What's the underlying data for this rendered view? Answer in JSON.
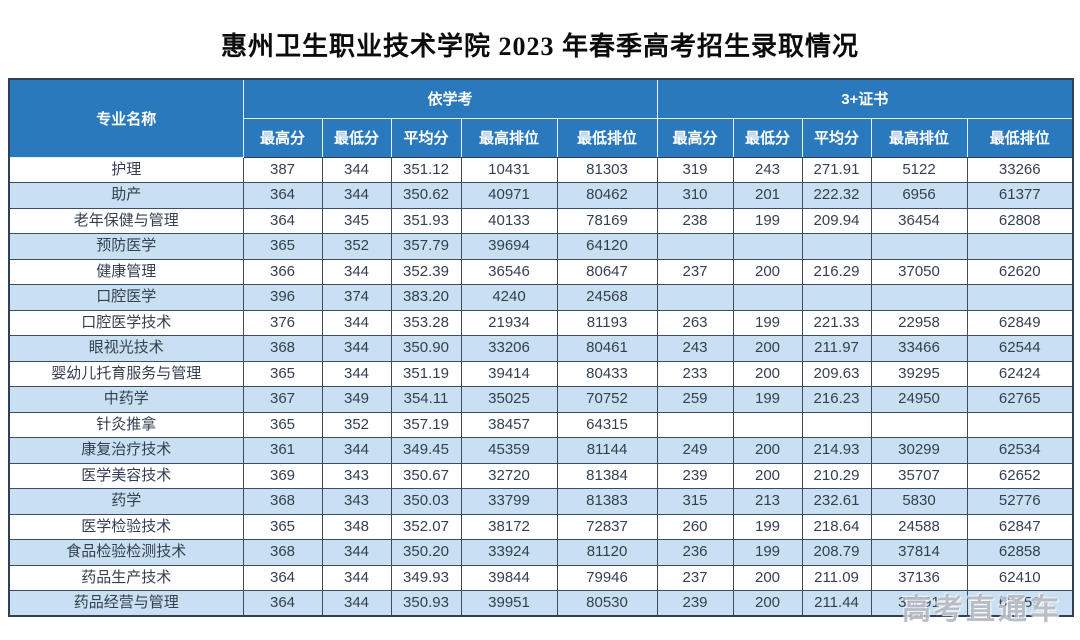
{
  "title": "惠州卫生职业技术学院 2023 年春季高考招生录取情况",
  "watermark": "高考直通车",
  "colors": {
    "header_bg": "#2a79bd",
    "row_alt_bg": "#c9e0f2",
    "row_bg": "#ffffff",
    "grid_line": "#3c4c64",
    "header_text": "#ffffff",
    "body_text": "#333f52",
    "title_text": "#0c0c0c"
  },
  "table": {
    "major_column_header": "专业名称",
    "groups": [
      {
        "label": "依学考",
        "columns": [
          "最高分",
          "最低分",
          "平均分",
          "最高排位",
          "最低排位"
        ]
      },
      {
        "label": "3+证书",
        "columns": [
          "最高分",
          "最低分",
          "平均分",
          "最高排位",
          "最低排位"
        ]
      }
    ],
    "rows": [
      {
        "major": "护理",
        "cells": [
          "387",
          "344",
          "351.12",
          "10431",
          "81303",
          "319",
          "243",
          "271.91",
          "5122",
          "33266"
        ]
      },
      {
        "major": "助产",
        "cells": [
          "364",
          "344",
          "350.62",
          "40971",
          "80462",
          "310",
          "201",
          "222.32",
          "6956",
          "61377"
        ]
      },
      {
        "major": "老年保健与管理",
        "cells": [
          "364",
          "345",
          "351.93",
          "40133",
          "78169",
          "238",
          "199",
          "209.94",
          "36454",
          "62808"
        ]
      },
      {
        "major": "预防医学",
        "cells": [
          "365",
          "352",
          "357.79",
          "39694",
          "64120",
          "",
          "",
          "",
          "",
          ""
        ]
      },
      {
        "major": "健康管理",
        "cells": [
          "366",
          "344",
          "352.39",
          "36546",
          "80647",
          "237",
          "200",
          "216.29",
          "37050",
          "62620"
        ]
      },
      {
        "major": "口腔医学",
        "cells": [
          "396",
          "374",
          "383.20",
          "4240",
          "24568",
          "",
          "",
          "",
          "",
          ""
        ]
      },
      {
        "major": "口腔医学技术",
        "cells": [
          "376",
          "344",
          "353.28",
          "21934",
          "81193",
          "263",
          "199",
          "221.33",
          "22958",
          "62849"
        ]
      },
      {
        "major": "眼视光技术",
        "cells": [
          "368",
          "344",
          "350.90",
          "33206",
          "80461",
          "243",
          "200",
          "211.97",
          "33466",
          "62544"
        ]
      },
      {
        "major": "婴幼儿托育服务与管理",
        "cells": [
          "365",
          "344",
          "351.19",
          "39414",
          "80433",
          "233",
          "200",
          "209.63",
          "39295",
          "62424"
        ]
      },
      {
        "major": "中药学",
        "cells": [
          "367",
          "349",
          "354.11",
          "35025",
          "70752",
          "259",
          "199",
          "216.23",
          "24950",
          "62765"
        ]
      },
      {
        "major": "针灸推拿",
        "cells": [
          "365",
          "352",
          "357.19",
          "38457",
          "64315",
          "",
          "",
          "",
          "",
          ""
        ]
      },
      {
        "major": "康复治疗技术",
        "cells": [
          "361",
          "344",
          "349.45",
          "45359",
          "81144",
          "249",
          "200",
          "214.93",
          "30299",
          "62534"
        ]
      },
      {
        "major": "医学美容技术",
        "cells": [
          "369",
          "343",
          "350.67",
          "32720",
          "81384",
          "239",
          "200",
          "210.29",
          "35707",
          "62652"
        ]
      },
      {
        "major": "药学",
        "cells": [
          "368",
          "343",
          "350.03",
          "33799",
          "81383",
          "315",
          "213",
          "232.61",
          "5830",
          "52776"
        ]
      },
      {
        "major": "医学检验技术",
        "cells": [
          "365",
          "348",
          "352.07",
          "38172",
          "72837",
          "260",
          "199",
          "218.64",
          "24588",
          "62847"
        ]
      },
      {
        "major": "食品检验检测技术",
        "cells": [
          "368",
          "344",
          "350.20",
          "33924",
          "81120",
          "236",
          "199",
          "208.79",
          "37814",
          "62858"
        ]
      },
      {
        "major": "药品生产技术",
        "cells": [
          "364",
          "344",
          "349.93",
          "39844",
          "79946",
          "237",
          "200",
          "211.09",
          "37136",
          "62410"
        ]
      },
      {
        "major": "药品经营与管理",
        "cells": [
          "364",
          "344",
          "350.93",
          "39951",
          "80530",
          "239",
          "200",
          "211.44",
          "35891",
          "62659"
        ]
      }
    ]
  }
}
